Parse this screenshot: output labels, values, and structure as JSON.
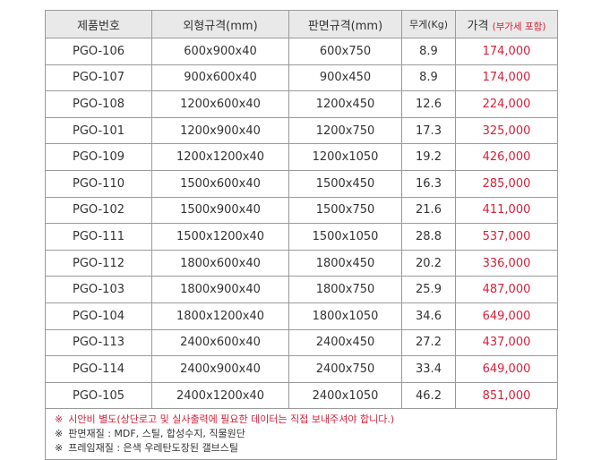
{
  "headers": {
    "code": "제품번호",
    "outer": "외형규격(mm)",
    "board": "판면규격(mm)",
    "weight": "무게(Kg)",
    "price": "가격",
    "price_note": "(부가세 포함)"
  },
  "rows": [
    {
      "code": "PGO-106",
      "outer": "600x900x40",
      "board": "600x750",
      "weight": "8.9",
      "price": "174,000"
    },
    {
      "code": "PGO-107",
      "outer": "900x600x40",
      "board": "900x450",
      "weight": "8.9",
      "price": "174,000"
    },
    {
      "code": "PGO-108",
      "outer": "1200x600x40",
      "board": "1200x450",
      "weight": "12.6",
      "price": "224,000"
    },
    {
      "code": "PGO-101",
      "outer": "1200x900x40",
      "board": "1200x750",
      "weight": "17.3",
      "price": "325,000"
    },
    {
      "code": "PGO-109",
      "outer": "1200x1200x40",
      "board": "1200x1050",
      "weight": "19.2",
      "price": "426,000"
    },
    {
      "code": "PGO-110",
      "outer": "1500x600x40",
      "board": "1500x450",
      "weight": "16.3",
      "price": "285,000"
    },
    {
      "code": "PGO-102",
      "outer": "1500x900x40",
      "board": "1500x750",
      "weight": "21.6",
      "price": "411,000"
    },
    {
      "code": "PGO-111",
      "outer": "1500x1200x40",
      "board": "1500x1050",
      "weight": "28.8",
      "price": "537,000"
    },
    {
      "code": "PGO-112",
      "outer": "1800x600x40",
      "board": "1800x450",
      "weight": "20.2",
      "price": "336,000"
    },
    {
      "code": "PGO-103",
      "outer": "1800x900x40",
      "board": "1800x750",
      "weight": "25.9",
      "price": "487,000"
    },
    {
      "code": "PGO-104",
      "outer": "1800x1200x40",
      "board": "1800x1050",
      "weight": "34.6",
      "price": "649,000"
    },
    {
      "code": "PGO-113",
      "outer": "2400x600x40",
      "board": "2400x450",
      "weight": "27.2",
      "price": "437,000"
    },
    {
      "code": "PGO-114",
      "outer": "2400x900x40",
      "board": "2400x750",
      "weight": "33.4",
      "price": "649,000"
    },
    {
      "code": "PGO-105",
      "outer": "2400x1200x40",
      "board": "2400x1050",
      "weight": "46.2",
      "price": "851,000"
    }
  ],
  "notes": {
    "mark": "※",
    "note1": "시안비 별도(상단로고 및 실사출력에 필요한 데이터는 직접 보내주셔야 합니다.)",
    "note2": "판면재질 : MDF, 스틸, 합성수지, 직물원단",
    "note3": "프레임재질 : 은색 우레탄도장된 갤브스틸"
  },
  "colors": {
    "price": "#d8203a",
    "header_bg": "#e9e9e9",
    "border": "#9a9a9a"
  }
}
